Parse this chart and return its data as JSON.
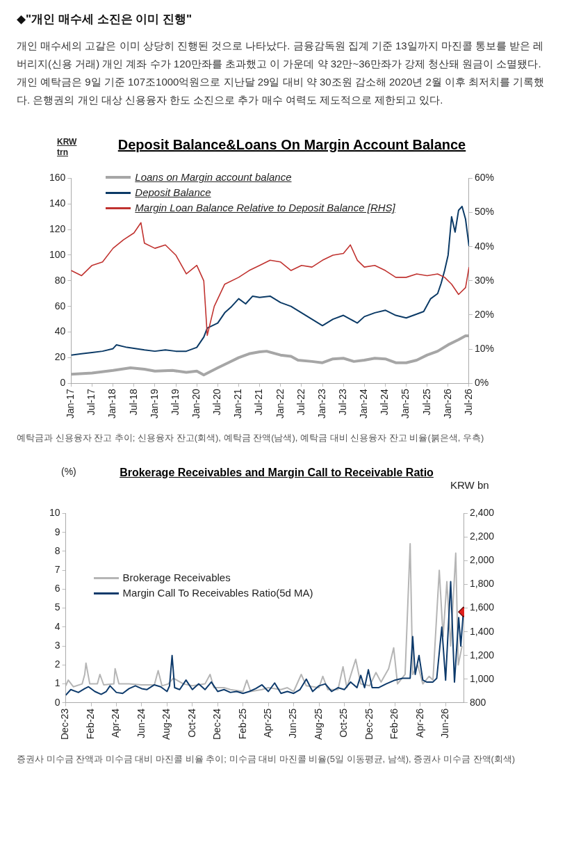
{
  "chart_data": [
    {
      "type": "line",
      "title": "Deposit Balance&Loans On Margin Account Balance",
      "ylabel": "KRW trn",
      "annotations": [
        "◆\"개인 매수세 소진은 이미 진행\"",
        "개인 매수세의 고갈은 이미 상당히 진행된 것으로 나타났다. 금융감독원 집계 기준 13일까지 마진콜 통보를 받은 레버리지(신용 거래) 개인 계좌 수가 120만좌를 초과했고 이 가운데 약 32만~36만좌가 강제 청산돼 원금이 소멸됐다. 개인 예탁금은 9일 기준 107조1000억원으로 지난달 29일 대비 약 30조원 감소해 2020년 2월 이후 최저치를 기록했다. 은행권의 개인 대상 신용융자 한도 소진으로 추가 매수 여력도 제도적으로 제한되고 있다.",
        "예탁금과 신용융자 잔고 추이; 신용융자 잔고(회색), 예탁금 잔액(남색), 예탁금 대비 신용융자 잔고 비율(붉은색, 우측)"
      ],
      "legend": "top left",
      "marker": "none",
      "line_style": "solid",
      "xlim": [
        "2017-01",
        "2026-07"
      ],
      "xticks": [
        {
          "value": "2017-01",
          "label": "Jan-17"
        },
        {
          "value": "2017-07",
          "label": "Jul-17"
        },
        {
          "value": "2018-01",
          "label": "Jan-18"
        },
        {
          "value": "2018-07",
          "label": "Jul-18"
        },
        {
          "value": "2019-01",
          "label": "Jan-19"
        },
        {
          "value": "2019-07",
          "label": "Jul-19"
        },
        {
          "value": "2020-01",
          "label": "Jan-20"
        },
        {
          "value": "2020-07",
          "label": "Jul-20"
        },
        {
          "value": "2021-01",
          "label": "Jan-21"
        },
        {
          "value": "2021-07",
          "label": "Jul-21"
        },
        {
          "value": "2022-01",
          "label": "Jan-22"
        },
        {
          "value": "2022-07",
          "label": "Jul-22"
        },
        {
          "value": "2023-01",
          "label": "Jan-23"
        },
        {
          "value": "2023-07",
          "label": "Jul-23"
        },
        {
          "value": "2024-01",
          "label": "Jan-24"
        },
        {
          "value": "2024-07",
          "label": "Jul-24"
        },
        {
          "value": "2025-01",
          "label": "Jan-25"
        },
        {
          "value": "2025-07",
          "label": "Jul-25"
        },
        {
          "value": "2026-01",
          "label": "Jan-26"
        },
        {
          "value": "2026-07",
          "label": "Jul-26"
        }
      ],
      "ylim": [
        0,
        160
      ],
      "yticks": [
        0,
        20,
        40,
        60,
        80,
        100,
        120,
        140,
        160
      ],
      "y2lim": [
        0,
        60
      ],
      "y2ticks": [
        {
          "value": 0,
          "label": "0%"
        },
        {
          "value": 10,
          "label": "10%"
        },
        {
          "value": 20,
          "label": "20%"
        },
        {
          "value": 30,
          "label": "30%"
        },
        {
          "value": 40,
          "label": "40%"
        },
        {
          "value": 50,
          "label": "50%"
        },
        {
          "value": 60,
          "label": "60%"
        }
      ],
      "series": [
        {
          "name": "Loans on Margin account balance",
          "color": "#a6a6a6",
          "x": [
            "2017-01",
            "2017-07",
            "2018-01",
            "2018-06",
            "2018-10",
            "2019-01",
            "2019-06",
            "2019-10",
            "2020-01",
            "2020-03",
            "2020-07",
            "2020-10",
            "2021-01",
            "2021-04",
            "2021-07",
            "2021-09",
            "2022-01",
            "2022-04",
            "2022-06",
            "2022-10",
            "2023-01",
            "2023-04",
            "2023-07",
            "2023-10",
            "2024-01",
            "2024-04",
            "2024-07",
            "2024-10",
            "2025-01",
            "2025-04",
            "2025-07",
            "2025-10",
            "2026-01",
            "2026-04",
            "2026-06",
            "2026-07"
          ],
          "values": [
            7,
            8,
            10,
            12,
            11,
            9.5,
            10,
            8.5,
            9.5,
            6.5,
            12,
            16,
            20,
            23,
            24.5,
            25,
            22,
            21,
            18,
            17,
            16,
            19,
            19.5,
            17,
            18,
            19.5,
            19,
            16,
            16,
            18,
            22,
            25,
            30,
            34,
            37,
            37
          ]
        },
        {
          "name": "Deposit Balance",
          "color": "#0b3a66",
          "x": [
            "2017-01",
            "2017-04",
            "2017-07",
            "2017-10",
            "2018-01",
            "2018-02",
            "2018-05",
            "2018-10",
            "2019-01",
            "2019-04",
            "2019-07",
            "2019-10",
            "2020-01",
            "2020-03",
            "2020-04",
            "2020-07",
            "2020-09",
            "2020-11",
            "2021-01",
            "2021-03",
            "2021-05",
            "2021-07",
            "2021-10",
            "2022-01",
            "2022-04",
            "2022-07",
            "2022-10",
            "2023-01",
            "2023-04",
            "2023-07",
            "2023-09",
            "2023-11",
            "2024-01",
            "2024-04",
            "2024-07",
            "2024-10",
            "2025-01",
            "2025-04",
            "2025-06",
            "2025-08",
            "2025-10",
            "2025-11",
            "2025-12",
            "2026-01",
            "2026-02",
            "2026-03",
            "2026-04",
            "2026-05",
            "2026-06",
            "2026-07"
          ],
          "values": [
            22,
            23,
            24,
            25,
            27,
            30,
            28,
            26,
            25,
            26,
            25,
            25,
            28,
            36,
            43,
            47,
            55,
            60,
            66,
            62,
            68,
            67,
            68,
            63,
            60,
            55,
            50,
            45,
            50,
            53,
            50,
            47,
            52,
            55,
            57,
            53,
            51,
            54,
            56,
            66,
            70,
            78,
            88,
            100,
            130,
            118,
            135,
            138,
            128,
            107
          ]
        },
        {
          "name": "Margin Loan Balance Relative to Deposit Balance [RHS]",
          "color": "#c0322f",
          "axis": "y2",
          "x": [
            "2017-01",
            "2017-04",
            "2017-07",
            "2017-10",
            "2018-01",
            "2018-04",
            "2018-07",
            "2018-09",
            "2018-10",
            "2019-01",
            "2019-04",
            "2019-07",
            "2019-10",
            "2020-01",
            "2020-03",
            "2020-04",
            "2020-06",
            "2020-09",
            "2021-01",
            "2021-04",
            "2021-07",
            "2021-10",
            "2022-01",
            "2022-04",
            "2022-07",
            "2022-10",
            "2023-01",
            "2023-04",
            "2023-07",
            "2023-09",
            "2023-11",
            "2024-01",
            "2024-04",
            "2024-07",
            "2024-10",
            "2025-01",
            "2025-04",
            "2025-07",
            "2025-10",
            "2025-12",
            "2026-02",
            "2026-04",
            "2026-06",
            "2026-07"
          ],
          "values": [
            33,
            31.5,
            34.5,
            35.5,
            39.5,
            42,
            44,
            47,
            41,
            39.5,
            40.5,
            37.5,
            32,
            34.5,
            30,
            14,
            22.5,
            29,
            31,
            33,
            34.5,
            36,
            35.5,
            33,
            34.5,
            34,
            36,
            37.5,
            38,
            40.5,
            36,
            34,
            34.5,
            33,
            31,
            31,
            32,
            31.5,
            32,
            31,
            29,
            26,
            28,
            34
          ]
        }
      ]
    },
    {
      "type": "line",
      "title": "Brokerage Receivables and Margin Call to Receivable Ratio",
      "ylabel": "(%)",
      "y2label": "KRW bn",
      "annotations": [
        "증권사 미수금 잔액과 미수금 대비 마진콜 비율 추이; 미수금 대비 마진콜 비율(5일 이동평균, 남색), 증권사 미수금 잔액(회색)"
      ],
      "legend": "left",
      "marker": "none",
      "line_style": "solid",
      "xlim": [
        "2023-12-01",
        "2026-07-15"
      ],
      "xticks": [
        {
          "value": "2023-12",
          "label": "Dec-23"
        },
        {
          "value": "2024-02",
          "label": "Feb-24"
        },
        {
          "value": "2024-04",
          "label": "Apr-24"
        },
        {
          "value": "2024-06",
          "label": "Jun-24"
        },
        {
          "value": "2024-08",
          "label": "Aug-24"
        },
        {
          "value": "2024-10",
          "label": "Oct-24"
        },
        {
          "value": "2024-12",
          "label": "Dec-24"
        },
        {
          "value": "2025-02",
          "label": "Feb-25"
        },
        {
          "value": "2025-04",
          "label": "Apr-25"
        },
        {
          "value": "2025-06",
          "label": "Jun-25"
        },
        {
          "value": "2025-08",
          "label": "Aug-25"
        },
        {
          "value": "2025-10",
          "label": "Oct-25"
        },
        {
          "value": "2025-12",
          "label": "Dec-25"
        },
        {
          "value": "2026-02",
          "label": "Feb-26"
        },
        {
          "value": "2026-04",
          "label": "Apr-26"
        },
        {
          "value": "2026-06",
          "label": "Jun-26"
        }
      ],
      "ylim": [
        0,
        10
      ],
      "yticks": [
        0,
        1,
        2,
        3,
        4,
        5,
        6,
        7,
        8,
        9,
        10
      ],
      "y2lim": [
        800,
        2400
      ],
      "y2ticks": [
        {
          "value": 800,
          "label": "800"
        },
        {
          "value": 1000,
          "label": "1,000"
        },
        {
          "value": 1200,
          "label": "1,200"
        },
        {
          "value": 1400,
          "label": "1,400"
        },
        {
          "value": 1600,
          "label": "1,600"
        },
        {
          "value": 1800,
          "label": "1,800"
        },
        {
          "value": 2000,
          "label": "2,000"
        },
        {
          "value": 2200,
          "label": "2,200"
        },
        {
          "value": 2400,
          "label": "2,400"
        }
      ],
      "series": [
        {
          "name": "Brokerage Receivables",
          "color": "#b5b5b5",
          "axis": "y2",
          "x": [
            "2023-12-01",
            "2023-12-07",
            "2023-12-19",
            "2024-01-10",
            "2024-01-16",
            "2024-01-19",
            "2024-01-28",
            "2024-02-16",
            "2024-02-22",
            "2024-03-01",
            "2024-03-25",
            "2024-03-28",
            "2024-04-07",
            "2024-05-01",
            "2024-06-01",
            "2024-07-01",
            "2024-07-10",
            "2024-07-19",
            "2024-08-04",
            "2024-08-16",
            "2024-09-10",
            "2024-10-01",
            "2024-11-01",
            "2024-11-13",
            "2024-11-22",
            "2024-12-16",
            "2025-01-01",
            "2025-02-01",
            "2025-02-10",
            "2025-02-19",
            "2025-03-16",
            "2025-04-01",
            "2025-05-01",
            "2025-05-16",
            "2025-06-01",
            "2025-06-19",
            "2025-07-01",
            "2025-08-01",
            "2025-08-10",
            "2025-08-22",
            "2025-09-16",
            "2025-09-28",
            "2025-10-07",
            "2025-10-28",
            "2025-11-10",
            "2025-12-01",
            "2025-12-16",
            "2025-12-28",
            "2026-01-16",
            "2026-01-28",
            "2026-02-07",
            "2026-02-25",
            "2026-03-07",
            "2026-03-13",
            "2026-03-25",
            "2026-04-07",
            "2026-04-22",
            "2026-05-01",
            "2026-05-16",
            "2026-05-25",
            "2026-06-04",
            "2026-06-13",
            "2026-06-25",
            "2026-07-01",
            "2026-07-10"
          ],
          "values": [
            944,
            992,
            936,
            960,
            1040,
            1136,
            960,
            960,
            1040,
            952,
            960,
            1088,
            960,
            960,
            952,
            952,
            1072,
            944,
            960,
            1008,
            960,
            944,
            960,
            1040,
            928,
            928,
            912,
            896,
            992,
            896,
            912,
            928,
            912,
            928,
            896,
            1040,
            944,
            928,
            1024,
            912,
            912,
            1104,
            928,
            1168,
            960,
            944,
            1056,
            976,
            1088,
            1264,
            960,
            1040,
            2144,
            1040,
            1120,
            960,
            1024,
            992,
            1920,
            1360,
            1824,
            1280,
            2064,
            1120,
            1280
          ]
        },
        {
          "name": "Margin Call To Receivables Ratio(5d MA)",
          "color": "#0d3a6b",
          "x": [
            "2023-12-01",
            "2023-12-13",
            "2024-01-01",
            "2024-01-16",
            "2024-01-25",
            "2024-02-10",
            "2024-02-25",
            "2024-03-07",
            "2024-03-16",
            "2024-04-01",
            "2024-04-16",
            "2024-05-01",
            "2024-05-16",
            "2024-06-01",
            "2024-06-13",
            "2024-07-01",
            "2024-07-16",
            "2024-08-01",
            "2024-08-07",
            "2024-08-13",
            "2024-08-19",
            "2024-09-01",
            "2024-09-16",
            "2024-10-01",
            "2024-10-16",
            "2024-11-01",
            "2024-11-16",
            "2024-12-01",
            "2024-12-16",
            "2025-01-01",
            "2025-01-16",
            "2025-02-01",
            "2025-02-16",
            "2025-03-01",
            "2025-03-16",
            "2025-04-01",
            "2025-04-16",
            "2025-05-01",
            "2025-05-16",
            "2025-06-01",
            "2025-06-16",
            "2025-07-01",
            "2025-07-16",
            "2025-08-01",
            "2025-08-16",
            "2025-09-01",
            "2025-09-16",
            "2025-10-01",
            "2025-10-16",
            "2025-11-01",
            "2025-11-10",
            "2025-11-19",
            "2025-11-28",
            "2025-12-07",
            "2025-12-22",
            "2026-01-10",
            "2026-02-01",
            "2026-02-19",
            "2026-03-07",
            "2026-03-13",
            "2026-03-19",
            "2026-03-28",
            "2026-04-07",
            "2026-04-16",
            "2026-05-01",
            "2026-05-10",
            "2026-05-22",
            "2026-06-01",
            "2026-06-13",
            "2026-06-22",
            "2026-07-02",
            "2026-07-07",
            "2026-07-13"
          ],
          "values": [
            0.4,
            0.7,
            0.55,
            0.75,
            0.85,
            0.6,
            0.45,
            0.6,
            0.9,
            0.55,
            0.5,
            0.75,
            0.9,
            0.75,
            0.7,
            0.95,
            0.85,
            0.6,
            0.9,
            2.5,
            0.8,
            0.7,
            1.2,
            0.7,
            1.0,
            0.7,
            1.1,
            0.6,
            0.7,
            0.55,
            0.6,
            0.5,
            0.6,
            0.75,
            0.95,
            0.6,
            1.05,
            0.5,
            0.6,
            0.5,
            0.7,
            1.25,
            0.6,
            0.9,
            1.0,
            0.6,
            0.8,
            0.7,
            1.1,
            0.8,
            1.45,
            0.8,
            1.75,
            0.8,
            0.8,
            1.0,
            1.2,
            1.3,
            1.3,
            3.5,
            1.5,
            2.5,
            1.2,
            1.1,
            1.1,
            1.3,
            4.0,
            1.2,
            6.4,
            1.1,
            4.5,
            3.0,
            4.8
          ]
        },
        {
          "type": "scatter",
          "color": "#e0201c",
          "marker": "diamond",
          "x": [
            "2026-07-13"
          ],
          "values": [
            4.8
          ]
        }
      ]
    }
  ]
}
